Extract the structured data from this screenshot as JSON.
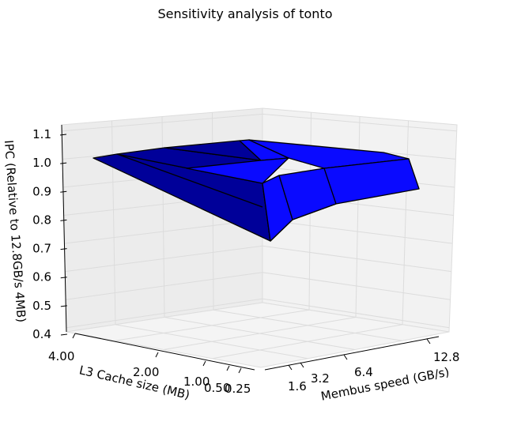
{
  "chart_data": {
    "type": "surface",
    "title": "Sensitivity analysis of tonto",
    "xlabel": "Membus speed (GB/s)",
    "ylabel": "L3 Cache size (MB)",
    "zlabel": "IPC (Relative to 12.8GB/s 4MB)",
    "x_ticks": [
      "1.6",
      "3.2",
      "6.4",
      "12.8"
    ],
    "y_ticks": [
      "4.00",
      "2.00",
      "1.00",
      "0.50",
      "0.25"
    ],
    "z_ticks": [
      "0.4",
      "0.5",
      "0.6",
      "0.7",
      "0.8",
      "0.9",
      "1.0",
      "1.1"
    ],
    "zlim": [
      0.4,
      1.1
    ],
    "grid": true,
    "surface_colors": {
      "dark": "#000099",
      "light": "#0a0aff",
      "edge": "#000000"
    }
  }
}
